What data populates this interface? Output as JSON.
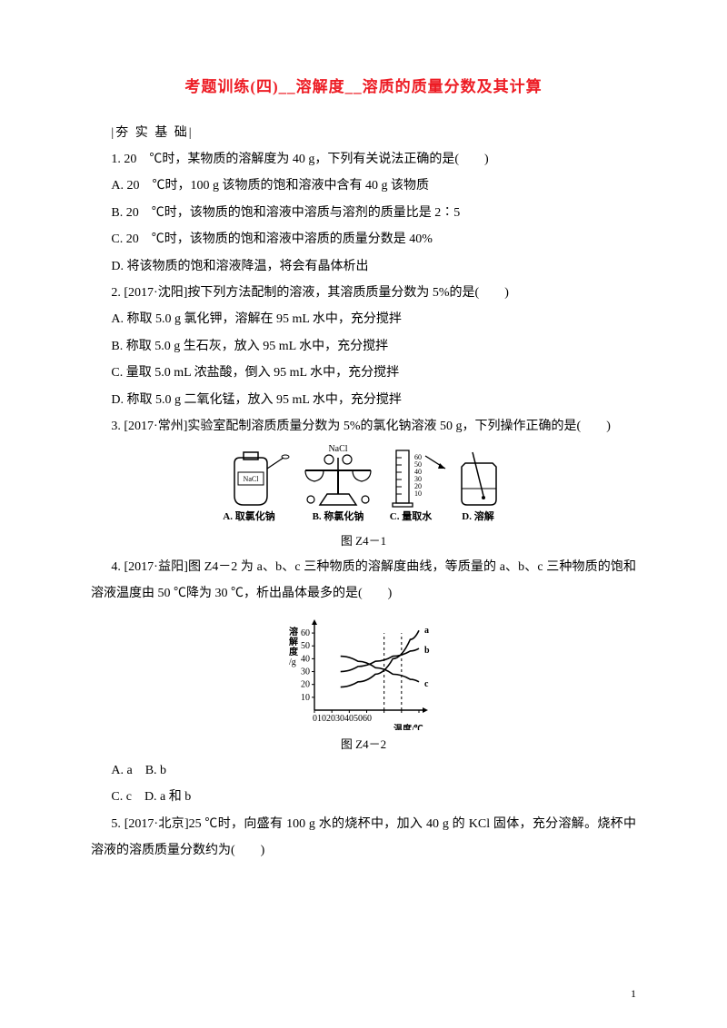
{
  "title": "考题训练(四)__溶解度__溶质的质量分数及其计算",
  "section_label": "|夯 实 基 础|",
  "q1": {
    "stem": "1. 20　℃时，某物质的溶解度为 40 g，下列有关说法正确的是(　　)",
    "a": "A. 20　℃时，100 g 该物质的饱和溶液中含有 40 g 该物质",
    "b": "B. 20　℃时，该物质的饱和溶液中溶质与溶剂的质量比是 2∶5",
    "c": "C. 20　℃时，该物质的饱和溶液中溶质的质量分数是 40%",
    "d": "D. 将该物质的饱和溶液降温，将会有晶体析出"
  },
  "q2": {
    "stem": "2. [2017·沈阳]按下列方法配制的溶液，其溶质质量分数为 5%的是(　　)",
    "a": "A. 称取 5.0 g 氯化钾，溶解在 95 mL 水中，充分搅拌",
    "b": "B. 称取 5.0 g 生石灰，放入 95 mL 水中，充分搅拌",
    "c": "C. 量取 5.0 mL 浓盐酸，倒入 95 mL 水中，充分搅拌",
    "d": "D. 称取 5.0 g 二氧化锰，放入 95 mL 水中，充分搅拌"
  },
  "q3": {
    "stem": "3. [2017·常州]实验室配制溶质质量分数为 5%的氯化钠溶液 50 g，下列操作正确的是(　　)"
  },
  "fig1": {
    "caption": "图 Z4－1",
    "labelA": "A. 取氯化钠",
    "labelB": "B. 称氯化钠",
    "labelC": "C. 量取水",
    "labelD": "D. 溶解",
    "nacl": "NaCl",
    "cyl_ticks": [
      "60",
      "50",
      "40",
      "30",
      "20",
      "10"
    ],
    "stroke": "#000000",
    "fill": "#ffffff",
    "label_fontsize": 11
  },
  "q4": {
    "stem": "4. [2017·益阳]图 Z4－2 为 a、b、c 三种物质的溶解度曲线，等质量的 a、b、c 三种物质的饱和溶液温度由 50 ℃降为 30 ℃，析出晶体最多的是(　　)"
  },
  "fig2": {
    "caption": "图 Z4－2",
    "ylabel1": "溶",
    "ylabel2": "解",
    "ylabel3": "度",
    "yunit": "/g",
    "xlabel": "温度/℃",
    "xticks": [
      "0",
      "10",
      "20",
      "30",
      "40",
      "50",
      "60"
    ],
    "yticks": [
      "10",
      "20",
      "30",
      "40",
      "50",
      "60"
    ],
    "label_a": "a",
    "label_b": "b",
    "label_c": "c",
    "curve_a": {
      "points": [
        [
          15,
          18
        ],
        [
          25,
          22
        ],
        [
          35,
          28
        ],
        [
          45,
          40
        ],
        [
          55,
          55
        ],
        [
          60,
          62
        ]
      ]
    },
    "curve_b": {
      "points": [
        [
          15,
          30
        ],
        [
          25,
          34
        ],
        [
          35,
          38
        ],
        [
          45,
          42
        ],
        [
          55,
          46
        ],
        [
          60,
          48
        ]
      ]
    },
    "curve_c": {
      "points": [
        [
          15,
          42
        ],
        [
          25,
          38
        ],
        [
          35,
          33
        ],
        [
          45,
          28
        ],
        [
          55,
          24
        ],
        [
          60,
          22
        ]
      ]
    },
    "vlines": [
      40,
      50
    ],
    "stroke": "#000000",
    "label_fontsize": 10
  },
  "q4_opts": {
    "row1": "A. a　B. b",
    "row2": "C. c　D. a 和 b"
  },
  "q5": {
    "stem": "5. [2017·北京]25 ℃时，向盛有 100 g 水的烧杯中，加入 40 g 的 KCl 固体，充分溶解。烧杯中溶液的溶质质量分数约为(　　)"
  },
  "page_number": "1"
}
